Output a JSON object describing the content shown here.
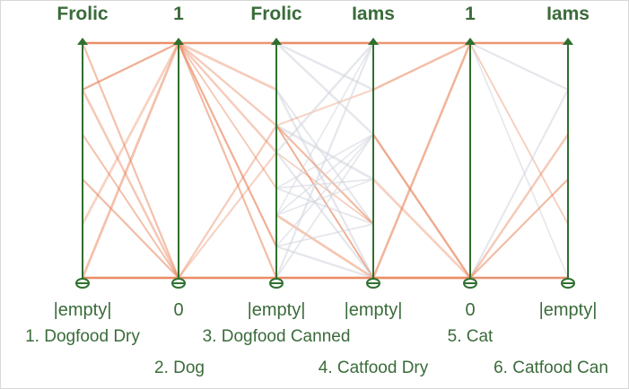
{
  "plot": {
    "line_color": "#e8845a",
    "line_color_faded": "#d0d4dc",
    "axis_color": "#2f6f2f",
    "label_color": "#3a6b3a"
  },
  "axes": [
    {
      "top": "Frolic",
      "bottom": "|empty|",
      "name": "1. Dogfood Dry"
    },
    {
      "top": "1",
      "bottom": "0",
      "name": "2. Dog"
    },
    {
      "top": "Frolic",
      "bottom": "|empty|",
      "name": "3. Dogfood Canned"
    },
    {
      "top": "Iams",
      "bottom": "|empty|",
      "name": "4. Catfood Dry"
    },
    {
      "top": "1",
      "bottom": "0",
      "name": "5. Cat"
    },
    {
      "top": "Iams",
      "bottom": "|empty|",
      "name": "6. Catfood Can"
    }
  ]
}
